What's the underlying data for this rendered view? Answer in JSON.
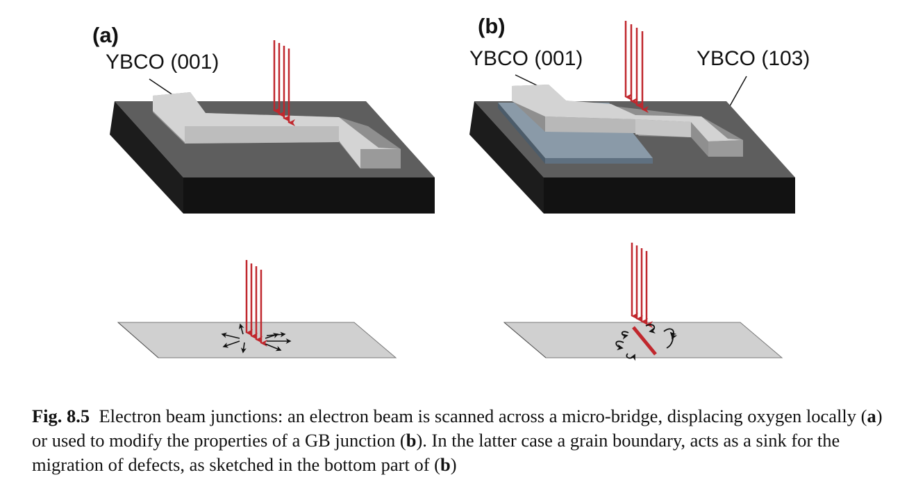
{
  "figure": {
    "panel_a": {
      "label": "(a)",
      "film_label": "YBCO (001)"
    },
    "panel_b": {
      "label": "(b)",
      "film_label_left": "YBCO (001)",
      "film_label_right": "YBCO (103)"
    },
    "colors": {
      "beam": "#c0272d",
      "substrate_top": "#5e5e5e",
      "substrate_side": "#111111",
      "film": "#d3d3d3",
      "buffer_layer": "#8a9aa8",
      "grain_boundary": "#c0272d"
    }
  },
  "caption": {
    "fig_number": "Fig. 8.5",
    "text_1": "Electron beam junctions: an electron beam is scanned across a micro-bridge, displacing oxygen locally (",
    "ref_a": "a",
    "text_2": ") or used to modify the properties of a GB junction (",
    "ref_b1": "b",
    "text_3": "). In the latter case a grain boundary, acts as a sink for the migration of defects, as sketched in the bottom part of (",
    "ref_b2": "b",
    "text_4": ")"
  }
}
